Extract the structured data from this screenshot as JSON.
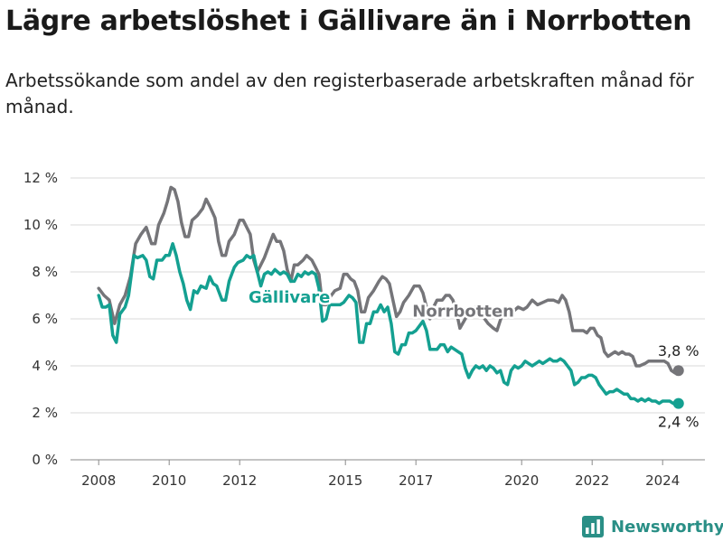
{
  "header": {
    "title": "Lägre arbetslöshet i Gällivare än i Norrbotten",
    "subtitle": "Arbetssökande som andel av den registerbaserade arbetskraften månad för månad."
  },
  "brand": {
    "name": "Newsworthy",
    "icon": "bar-chart-logo-icon",
    "color": "#2a8f86"
  },
  "chart_data": {
    "type": "line",
    "title": "",
    "xlabel": "",
    "ylabel": "",
    "x_ticks": [
      "2008",
      "2010",
      "2012",
      "2015",
      "2017",
      "2020",
      "2022",
      "2024"
    ],
    "y_ticks": [
      "0 %",
      "2 %",
      "4 %",
      "6 %",
      "8 %",
      "10 %",
      "12 %"
    ],
    "ylim": [
      0,
      12
    ],
    "xlim": [
      2007.2,
      2025.2
    ],
    "grid": true,
    "legend": "inline labels",
    "series": [
      {
        "name": "Norrbotten",
        "color": "#757579",
        "end_label": "3,8 %",
        "points": [
          [
            2008.0,
            7.3
          ],
          [
            2008.15,
            7.0
          ],
          [
            2008.3,
            6.8
          ],
          [
            2008.45,
            5.8
          ],
          [
            2008.6,
            6.6
          ],
          [
            2008.75,
            7.0
          ],
          [
            2008.9,
            7.8
          ],
          [
            2009.05,
            9.2
          ],
          [
            2009.2,
            9.6
          ],
          [
            2009.35,
            9.9
          ],
          [
            2009.5,
            9.2
          ],
          [
            2009.6,
            9.2
          ],
          [
            2009.7,
            10.0
          ],
          [
            2009.85,
            10.5
          ],
          [
            2009.95,
            11.0
          ],
          [
            2010.05,
            11.6
          ],
          [
            2010.15,
            11.5
          ],
          [
            2010.25,
            11.0
          ],
          [
            2010.35,
            10.1
          ],
          [
            2010.45,
            9.5
          ],
          [
            2010.55,
            9.5
          ],
          [
            2010.65,
            10.2
          ],
          [
            2010.8,
            10.4
          ],
          [
            2010.95,
            10.7
          ],
          [
            2011.05,
            11.1
          ],
          [
            2011.15,
            10.8
          ],
          [
            2011.3,
            10.3
          ],
          [
            2011.4,
            9.3
          ],
          [
            2011.5,
            8.7
          ],
          [
            2011.6,
            8.7
          ],
          [
            2011.7,
            9.3
          ],
          [
            2011.85,
            9.6
          ],
          [
            2012.0,
            10.2
          ],
          [
            2012.1,
            10.2
          ],
          [
            2012.2,
            9.9
          ],
          [
            2012.3,
            9.6
          ],
          [
            2012.4,
            8.5
          ],
          [
            2012.5,
            8.0
          ],
          [
            2012.6,
            8.3
          ],
          [
            2012.7,
            8.6
          ],
          [
            2012.8,
            9.0
          ],
          [
            2012.95,
            9.6
          ],
          [
            2013.05,
            9.3
          ],
          [
            2013.15,
            9.3
          ],
          [
            2013.25,
            8.9
          ],
          [
            2013.35,
            8.1
          ],
          [
            2013.45,
            7.6
          ],
          [
            2013.55,
            8.3
          ],
          [
            2013.65,
            8.3
          ],
          [
            2013.8,
            8.5
          ],
          [
            2013.9,
            8.7
          ],
          [
            2014.05,
            8.5
          ],
          [
            2014.15,
            8.2
          ],
          [
            2014.25,
            7.9
          ],
          [
            2014.35,
            6.6
          ],
          [
            2014.45,
            6.6
          ],
          [
            2014.55,
            6.9
          ],
          [
            2014.7,
            7.2
          ],
          [
            2014.85,
            7.3
          ],
          [
            2014.95,
            7.9
          ],
          [
            2015.05,
            7.9
          ],
          [
            2015.15,
            7.7
          ],
          [
            2015.25,
            7.6
          ],
          [
            2015.35,
            7.2
          ],
          [
            2015.45,
            6.3
          ],
          [
            2015.55,
            6.3
          ],
          [
            2015.65,
            6.9
          ],
          [
            2015.8,
            7.2
          ],
          [
            2015.95,
            7.6
          ],
          [
            2016.05,
            7.8
          ],
          [
            2016.15,
            7.7
          ],
          [
            2016.25,
            7.5
          ],
          [
            2016.35,
            6.8
          ],
          [
            2016.45,
            6.1
          ],
          [
            2016.55,
            6.3
          ],
          [
            2016.65,
            6.7
          ],
          [
            2016.8,
            7.0
          ],
          [
            2016.95,
            7.4
          ],
          [
            2017.1,
            7.4
          ],
          [
            2017.2,
            7.1
          ],
          [
            2017.3,
            6.5
          ],
          [
            2017.4,
            6.0
          ],
          [
            2017.5,
            6.5
          ],
          [
            2017.6,
            6.8
          ],
          [
            2017.75,
            6.8
          ],
          [
            2017.85,
            7.0
          ],
          [
            2017.95,
            7.0
          ],
          [
            2018.05,
            6.8
          ],
          [
            2018.15,
            6.3
          ],
          [
            2018.25,
            5.6
          ],
          [
            2018.4,
            6.0
          ],
          [
            2018.55,
            6.3
          ],
          [
            2018.7,
            6.5
          ],
          [
            2018.85,
            6.3
          ],
          [
            2018.95,
            6.0
          ],
          [
            2019.05,
            5.8
          ],
          [
            2019.2,
            5.6
          ],
          [
            2019.3,
            5.5
          ],
          [
            2019.45,
            6.2
          ],
          [
            2019.6,
            6.3
          ],
          [
            2019.75,
            6.3
          ],
          [
            2019.9,
            6.5
          ],
          [
            2020.05,
            6.4
          ],
          [
            2020.15,
            6.5
          ],
          [
            2020.3,
            6.8
          ],
          [
            2020.45,
            6.6
          ],
          [
            2020.6,
            6.7
          ],
          [
            2020.75,
            6.8
          ],
          [
            2020.9,
            6.8
          ],
          [
            2021.05,
            6.7
          ],
          [
            2021.15,
            7.0
          ],
          [
            2021.25,
            6.8
          ],
          [
            2021.35,
            6.3
          ],
          [
            2021.45,
            5.5
          ],
          [
            2021.6,
            5.5
          ],
          [
            2021.75,
            5.5
          ],
          [
            2021.85,
            5.4
          ],
          [
            2021.95,
            5.6
          ],
          [
            2022.05,
            5.6
          ],
          [
            2022.15,
            5.3
          ],
          [
            2022.25,
            5.2
          ],
          [
            2022.35,
            4.6
          ],
          [
            2022.45,
            4.4
          ],
          [
            2022.55,
            4.5
          ],
          [
            2022.65,
            4.6
          ],
          [
            2022.75,
            4.5
          ],
          [
            2022.85,
            4.6
          ],
          [
            2022.95,
            4.5
          ],
          [
            2023.05,
            4.5
          ],
          [
            2023.15,
            4.4
          ],
          [
            2023.25,
            4.0
          ],
          [
            2023.35,
            4.0
          ],
          [
            2023.5,
            4.1
          ],
          [
            2023.6,
            4.2
          ],
          [
            2023.75,
            4.2
          ],
          [
            2023.9,
            4.2
          ],
          [
            2024.05,
            4.2
          ],
          [
            2024.15,
            4.1
          ],
          [
            2024.25,
            3.8
          ],
          [
            2024.35,
            3.7
          ],
          [
            2024.45,
            3.8
          ]
        ]
      },
      {
        "name": "Gällivare",
        "color": "#14a091",
        "end_label": "2,4 %",
        "points": [
          [
            2008.0,
            7.0
          ],
          [
            2008.1,
            6.5
          ],
          [
            2008.2,
            6.5
          ],
          [
            2008.3,
            6.6
          ],
          [
            2008.4,
            5.3
          ],
          [
            2008.5,
            5.0
          ],
          [
            2008.6,
            6.2
          ],
          [
            2008.75,
            6.5
          ],
          [
            2008.85,
            7.0
          ],
          [
            2009.0,
            8.7
          ],
          [
            2009.1,
            8.6
          ],
          [
            2009.25,
            8.7
          ],
          [
            2009.35,
            8.5
          ],
          [
            2009.45,
            7.8
          ],
          [
            2009.55,
            7.7
          ],
          [
            2009.65,
            8.5
          ],
          [
            2009.8,
            8.5
          ],
          [
            2009.9,
            8.7
          ],
          [
            2010.0,
            8.7
          ],
          [
            2010.1,
            9.2
          ],
          [
            2010.2,
            8.7
          ],
          [
            2010.3,
            8.0
          ],
          [
            2010.4,
            7.5
          ],
          [
            2010.5,
            6.8
          ],
          [
            2010.6,
            6.4
          ],
          [
            2010.7,
            7.2
          ],
          [
            2010.8,
            7.1
          ],
          [
            2010.9,
            7.4
          ],
          [
            2011.05,
            7.3
          ],
          [
            2011.15,
            7.8
          ],
          [
            2011.25,
            7.5
          ],
          [
            2011.35,
            7.4
          ],
          [
            2011.5,
            6.8
          ],
          [
            2011.6,
            6.8
          ],
          [
            2011.7,
            7.6
          ],
          [
            2011.85,
            8.2
          ],
          [
            2011.95,
            8.4
          ],
          [
            2012.1,
            8.5
          ],
          [
            2012.2,
            8.7
          ],
          [
            2012.3,
            8.6
          ],
          [
            2012.4,
            8.7
          ],
          [
            2012.5,
            8.0
          ],
          [
            2012.6,
            7.4
          ],
          [
            2012.7,
            7.9
          ],
          [
            2012.8,
            8.0
          ],
          [
            2012.9,
            7.9
          ],
          [
            2013.0,
            8.1
          ],
          [
            2013.15,
            7.9
          ],
          [
            2013.25,
            8.0
          ],
          [
            2013.35,
            7.9
          ],
          [
            2013.45,
            7.6
          ],
          [
            2013.55,
            7.6
          ],
          [
            2013.65,
            7.9
          ],
          [
            2013.75,
            7.8
          ],
          [
            2013.85,
            8.0
          ],
          [
            2013.95,
            7.9
          ],
          [
            2014.05,
            8.0
          ],
          [
            2014.15,
            7.9
          ],
          [
            2014.25,
            7.3
          ],
          [
            2014.35,
            5.9
          ],
          [
            2014.45,
            6.0
          ],
          [
            2014.55,
            6.6
          ],
          [
            2014.7,
            6.6
          ],
          [
            2014.85,
            6.6
          ],
          [
            2014.95,
            6.7
          ],
          [
            2015.1,
            7.0
          ],
          [
            2015.2,
            6.9
          ],
          [
            2015.3,
            6.7
          ],
          [
            2015.4,
            5.0
          ],
          [
            2015.5,
            5.0
          ],
          [
            2015.6,
            5.8
          ],
          [
            2015.7,
            5.8
          ],
          [
            2015.8,
            6.3
          ],
          [
            2015.9,
            6.3
          ],
          [
            2016.0,
            6.6
          ],
          [
            2016.1,
            6.3
          ],
          [
            2016.2,
            6.5
          ],
          [
            2016.3,
            5.8
          ],
          [
            2016.4,
            4.6
          ],
          [
            2016.5,
            4.5
          ],
          [
            2016.6,
            4.9
          ],
          [
            2016.7,
            4.9
          ],
          [
            2016.8,
            5.4
          ],
          [
            2016.9,
            5.4
          ],
          [
            2017.0,
            5.5
          ],
          [
            2017.1,
            5.7
          ],
          [
            2017.2,
            5.9
          ],
          [
            2017.3,
            5.5
          ],
          [
            2017.4,
            4.7
          ],
          [
            2017.5,
            4.7
          ],
          [
            2017.6,
            4.7
          ],
          [
            2017.7,
            4.9
          ],
          [
            2017.8,
            4.9
          ],
          [
            2017.9,
            4.6
          ],
          [
            2018.0,
            4.8
          ],
          [
            2018.1,
            4.7
          ],
          [
            2018.2,
            4.6
          ],
          [
            2018.3,
            4.5
          ],
          [
            2018.4,
            3.9
          ],
          [
            2018.5,
            3.5
          ],
          [
            2018.6,
            3.8
          ],
          [
            2018.7,
            4.0
          ],
          [
            2018.8,
            3.9
          ],
          [
            2018.9,
            4.0
          ],
          [
            2019.0,
            3.8
          ],
          [
            2019.1,
            4.0
          ],
          [
            2019.2,
            3.9
          ],
          [
            2019.3,
            3.7
          ],
          [
            2019.4,
            3.8
          ],
          [
            2019.5,
            3.3
          ],
          [
            2019.6,
            3.2
          ],
          [
            2019.7,
            3.8
          ],
          [
            2019.8,
            4.0
          ],
          [
            2019.9,
            3.9
          ],
          [
            2020.0,
            4.0
          ],
          [
            2020.1,
            4.2
          ],
          [
            2020.2,
            4.1
          ],
          [
            2020.3,
            4.0
          ],
          [
            2020.4,
            4.1
          ],
          [
            2020.5,
            4.2
          ],
          [
            2020.6,
            4.1
          ],
          [
            2020.7,
            4.2
          ],
          [
            2020.8,
            4.3
          ],
          [
            2020.9,
            4.2
          ],
          [
            2021.0,
            4.2
          ],
          [
            2021.1,
            4.3
          ],
          [
            2021.2,
            4.2
          ],
          [
            2021.3,
            4.0
          ],
          [
            2021.4,
            3.8
          ],
          [
            2021.5,
            3.2
          ],
          [
            2021.6,
            3.3
          ],
          [
            2021.7,
            3.5
          ],
          [
            2021.8,
            3.5
          ],
          [
            2021.9,
            3.6
          ],
          [
            2022.0,
            3.6
          ],
          [
            2022.1,
            3.5
          ],
          [
            2022.2,
            3.2
          ],
          [
            2022.3,
            3.0
          ],
          [
            2022.4,
            2.8
          ],
          [
            2022.5,
            2.9
          ],
          [
            2022.6,
            2.9
          ],
          [
            2022.7,
            3.0
          ],
          [
            2022.8,
            2.9
          ],
          [
            2022.9,
            2.8
          ],
          [
            2023.0,
            2.8
          ],
          [
            2023.1,
            2.6
          ],
          [
            2023.2,
            2.6
          ],
          [
            2023.3,
            2.5
          ],
          [
            2023.4,
            2.6
          ],
          [
            2023.5,
            2.5
          ],
          [
            2023.6,
            2.6
          ],
          [
            2023.7,
            2.5
          ],
          [
            2023.8,
            2.5
          ],
          [
            2023.9,
            2.4
          ],
          [
            2024.0,
            2.5
          ],
          [
            2024.1,
            2.5
          ],
          [
            2024.2,
            2.5
          ],
          [
            2024.3,
            2.4
          ],
          [
            2024.45,
            2.4
          ]
        ]
      }
    ]
  }
}
